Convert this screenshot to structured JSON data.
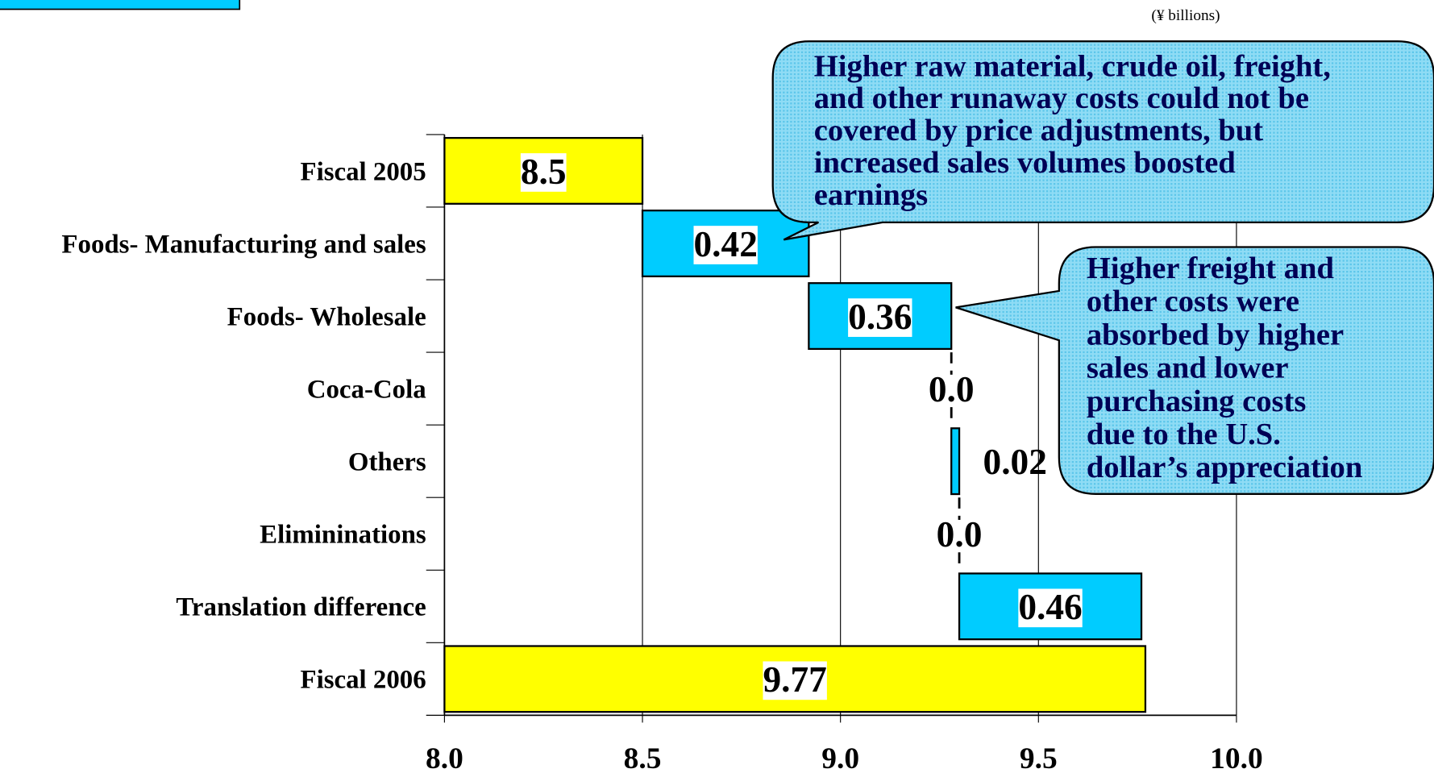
{
  "chart_data": {
    "type": "waterfall",
    "unit": "(¥ billions)",
    "categories": [
      "Fiscal 2005",
      "Foods- Manufacturing and sales",
      "Foods- Wholesale",
      "Coca-Cola",
      "Others",
      "Elimininations",
      "Translation difference",
      "Fiscal 2006"
    ],
    "values": [
      8.5,
      0.42,
      0.36,
      0,
      0.02,
      0,
      0.46,
      9.77
    ],
    "value_labels": [
      "8.5",
      "0.42",
      "0.36",
      "0.0",
      "0.02",
      "0.0",
      "0.46",
      "9.77"
    ],
    "colors": [
      "#ffff00",
      "#00ccff",
      "#00ccff",
      "#00ccff",
      "#00ccff",
      "#00ccff",
      "#00ccff",
      "#ffff00"
    ],
    "xlim": [
      8.0,
      10.0
    ],
    "xticks": [
      {
        "value": 8.0,
        "label": "8.0"
      },
      {
        "value": 8.5,
        "label": "8.5"
      },
      {
        "value": 9.0,
        "label": "9.0"
      },
      {
        "value": 9.5,
        "label": "9.5"
      },
      {
        "value": 10.0,
        "label": "10.0"
      }
    ],
    "grid": true,
    "annotations": [
      {
        "lines": [
          "Higher raw material, crude oil, freight,",
          "and other runaway costs could not be",
          "covered by price adjustments, but",
          "increased sales volumes boosted",
          "earnings"
        ]
      },
      {
        "lines": [
          "Higher freight and",
          "other costs were",
          "absorbed by higher",
          "sales and lower",
          "purchasing costs",
          "due to the U.S.",
          "dollar’s appreciation"
        ]
      }
    ]
  }
}
